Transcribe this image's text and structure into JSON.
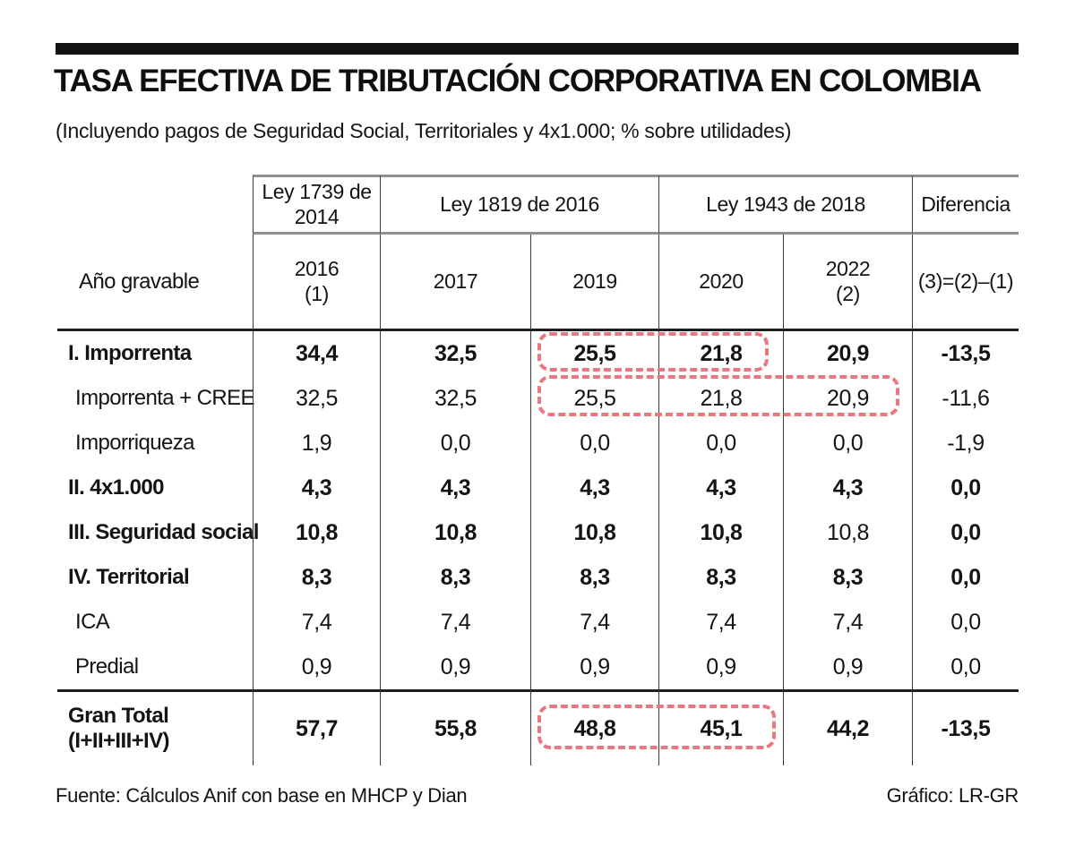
{
  "page": {
    "title": "TASA EFECTIVA DE TRIBUTACIÓN CORPORATIVA EN COLOMBIA",
    "subtitle": "(Incluyendo pagos de Seguridad Social, Territoriales y 4x1.000; % sobre utilidades)",
    "source": "Fuente: Cálculos Anif con base en MHCP y Dian",
    "credit": "Gráfico: LR-GR"
  },
  "colors": {
    "highlight_dashed_box": "#ea767f",
    "rule_black": "#1d1d1d",
    "rule_gray": "#8f8f8f"
  },
  "chart_data": {
    "type": "table",
    "title": "TASA EFECTIVA DE TRIBUTACIÓN CORPORATIVA EN COLOMBIA",
    "subtitle": "(Incluyendo pagos de Seguridad Social, Territoriales y 4x1.000; % sobre utilidades)",
    "units": "% sobre utilidades",
    "row_header_label": "Año gravable",
    "group_headers": [
      "Ley 1739 de\n2014",
      "Ley 1819 de 2016",
      "Ley 1943 de 2018",
      "Diferencia"
    ],
    "column_headers": [
      "2016\n(1)",
      "2017",
      "2019",
      "2020",
      "2022\n(2)",
      "(3)=(2)–(1)"
    ],
    "rows": [
      {
        "label": "I. Imporrenta",
        "level": "main",
        "values": [
          "34,4",
          "32,5",
          "25,5",
          "21,8",
          "20,9",
          "-13,5"
        ]
      },
      {
        "label": "Imporrenta + CREE",
        "level": "sub",
        "values": [
          "32,5",
          "32,5",
          "25,5",
          "21,8",
          "20,9",
          "-11,6"
        ]
      },
      {
        "label": "Imporriqueza",
        "level": "sub",
        "values": [
          "1,9",
          "0,0",
          "0,0",
          "0,0",
          "0,0",
          "-1,9"
        ]
      },
      {
        "label": "II. 4x1.000",
        "level": "main",
        "values": [
          "4,3",
          "4,3",
          "4,3",
          "4,3",
          "4,3",
          "0,0"
        ]
      },
      {
        "label": "III. Seguridad social",
        "level": "main",
        "values": [
          "10,8",
          "10,8",
          "10,8",
          "10,8",
          "10,8",
          "0,0"
        ]
      },
      {
        "label": "IV. Territorial",
        "level": "main",
        "values": [
          "8,3",
          "8,3",
          "8,3",
          "8,3",
          "8,3",
          "0,0"
        ]
      },
      {
        "label": "ICA",
        "level": "sub",
        "values": [
          "7,4",
          "7,4",
          "7,4",
          "7,4",
          "7,4",
          "0,0"
        ]
      },
      {
        "label": "Predial",
        "level": "sub",
        "values": [
          "0,9",
          "0,9",
          "0,9",
          "0,9",
          "0,9",
          "0,0"
        ]
      },
      {
        "label": "Gran Total\n(I+II+III+IV)",
        "level": "total",
        "values": [
          "57,7",
          "55,8",
          "48,8",
          "45,1",
          "44,2",
          "-13,5"
        ]
      }
    ],
    "highlights": [
      {
        "row": "I. Imporrenta",
        "columns": [
          "2019",
          "2020"
        ]
      },
      {
        "row": "Imporrenta + CREE",
        "columns": [
          "2019",
          "2020",
          "2022"
        ]
      },
      {
        "row": "Gran Total (I+II+III+IV)",
        "columns": [
          "2019",
          "2020"
        ]
      }
    ]
  }
}
